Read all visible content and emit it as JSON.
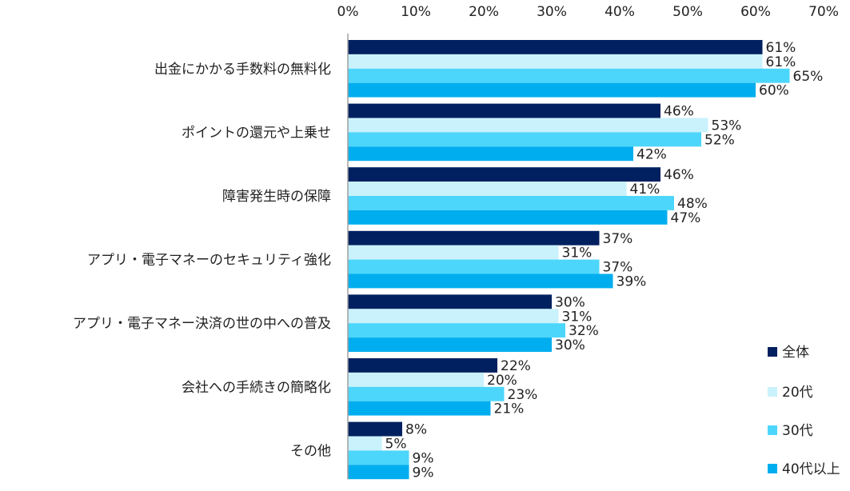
{
  "chart_data": {
    "type": "bar",
    "orientation": "horizontal",
    "title": "",
    "xlabel": "",
    "ylabel": "",
    "xlim": [
      0,
      70
    ],
    "x_ticks": [
      {
        "value": 0,
        "label": "0%"
      },
      {
        "value": 10,
        "label": "10%"
      },
      {
        "value": 20,
        "label": "20%"
      },
      {
        "value": 30,
        "label": "30%"
      },
      {
        "value": 40,
        "label": "40%"
      },
      {
        "value": 50,
        "label": "50%"
      },
      {
        "value": 60,
        "label": "60%"
      },
      {
        "value": 70,
        "label": "70%"
      }
    ],
    "grid": false,
    "legend_position": "bottom-right",
    "categories": [
      "出金にかかる手数料の無料化",
      "ポイントの還元や上乗せ",
      "障害発生時の保障",
      "アプリ・電子マネーのセキュリティ強化",
      "アプリ・電子マネー決済の世の中への普及",
      "会社への手続きの簡略化",
      "その他"
    ],
    "series": [
      {
        "name": "全体",
        "color": "#002060",
        "values": [
          61,
          46,
          46,
          37,
          30,
          22,
          8
        ],
        "labels": [
          "61%",
          "46%",
          "46%",
          "37%",
          "30%",
          "22%",
          "8%"
        ]
      },
      {
        "name": "20代",
        "color": "#c9f2fc",
        "values": [
          61,
          53,
          41,
          31,
          31,
          20,
          5
        ],
        "labels": [
          "61%",
          "53%",
          "41%",
          "31%",
          "31%",
          "20%",
          "5%"
        ]
      },
      {
        "name": "30代",
        "color": "#4dd6fb",
        "values": [
          65,
          52,
          48,
          37,
          32,
          23,
          9
        ],
        "labels": [
          "65%",
          "52%",
          "48%",
          "37%",
          "32%",
          "23%",
          "9%"
        ]
      },
      {
        "name": "40代以上",
        "color": "#00aeef",
        "values": [
          60,
          42,
          47,
          39,
          30,
          21,
          9
        ],
        "labels": [
          "60%",
          "42%",
          "47%",
          "39%",
          "30%",
          "21%",
          "9%"
        ]
      }
    ]
  }
}
